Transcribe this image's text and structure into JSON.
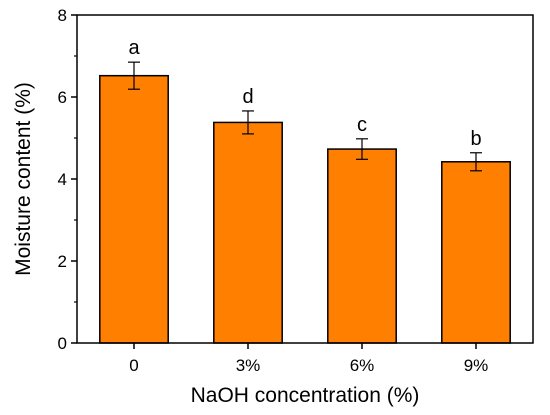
{
  "chart_data": {
    "type": "bar",
    "categories": [
      "0",
      "3%",
      "6%",
      "9%"
    ],
    "values": [
      6.52,
      5.38,
      4.73,
      4.42
    ],
    "errors": [
      0.33,
      0.28,
      0.25,
      0.22
    ],
    "significance_labels": [
      "a",
      "d",
      "c",
      "b"
    ],
    "xlabel": "NaOH concentration (%)",
    "ylabel": "Moisture content (%)",
    "ylim": [
      0,
      8
    ],
    "yticks": [
      "0",
      "2",
      "4",
      "6",
      "8"
    ],
    "bar_color": "#ff8000",
    "bar_edge_color": "#000000",
    "grid": false,
    "legend": "none"
  }
}
